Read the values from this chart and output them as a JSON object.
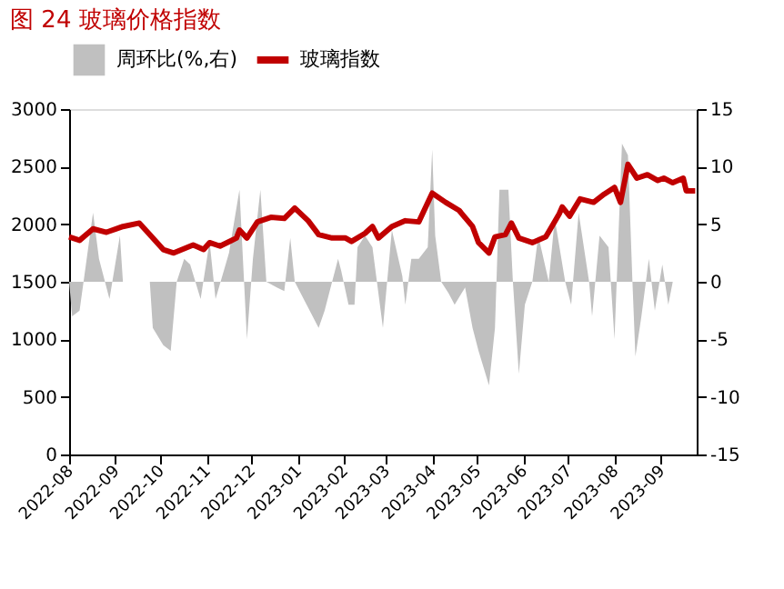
{
  "chart_data": {
    "type": "line",
    "title": "图 24 玻璃价格指数",
    "legend": "top",
    "grid": false,
    "marker": "none",
    "line_style": "solid",
    "xlim": [
      "2022-08-01",
      "2023-09-25"
    ],
    "xticks": [
      {
        "value": "2022-08-01",
        "label": "2022-08"
      },
      {
        "value": "2022-09-01",
        "label": "2022-09"
      },
      {
        "value": "2022-10-01",
        "label": "2022-10"
      },
      {
        "value": "2022-11-01",
        "label": "2022-11"
      },
      {
        "value": "2022-12-01",
        "label": "2022-12"
      },
      {
        "value": "2023-01-01",
        "label": "2023-01"
      },
      {
        "value": "2023-02-01",
        "label": "2023-02"
      },
      {
        "value": "2023-03-01",
        "label": "2023-03"
      },
      {
        "value": "2023-04-01",
        "label": "2023-04"
      },
      {
        "value": "2023-05-01",
        "label": "2023-05"
      },
      {
        "value": "2023-06-01",
        "label": "2023-06"
      },
      {
        "value": "2023-07-01",
        "label": "2023-07"
      },
      {
        "value": "2023-08-01",
        "label": "2023-08"
      },
      {
        "value": "2023-09-01",
        "label": "2023-09"
      }
    ],
    "ylim": [
      0,
      3000
    ],
    "yticks": [
      0,
      500,
      1000,
      1500,
      2000,
      2500,
      3000
    ],
    "y2lim": [
      -15,
      15
    ],
    "y2ticks": [
      -15,
      -10,
      -5,
      0,
      5,
      10,
      15
    ],
    "series": [
      {
        "name": "周环比(%,右)",
        "type": "area",
        "axis": "y2",
        "color": "#c0c0c0",
        "x": [
          "2022-08-01",
          "2022-08-03",
          "2022-08-08",
          "2022-08-17",
          "2022-08-21",
          "2022-08-28",
          "2022-09-04",
          "2022-09-06",
          "2022-09-24",
          "2022-09-26",
          "2022-10-03",
          "2022-10-08",
          "2022-10-12",
          "2022-10-17",
          "2022-10-21",
          "2022-10-28",
          "2022-11-03",
          "2022-11-07",
          "2022-11-16",
          "2022-11-23",
          "2022-11-28",
          "2022-12-02",
          "2022-12-07",
          "2022-12-11",
          "2022-12-18",
          "2022-12-23",
          "2022-12-27",
          "2022-12-30",
          "2023-01-15",
          "2023-01-19",
          "2023-01-28",
          "2023-01-30",
          "2023-02-04",
          "2023-02-08",
          "2023-02-10",
          "2023-02-15",
          "2023-02-20",
          "2023-02-27",
          "2023-03-05",
          "2023-03-12",
          "2023-03-14",
          "2023-03-18",
          "2023-03-23",
          "2023-03-29",
          "2023-04-01",
          "2023-04-03",
          "2023-04-07",
          "2023-04-12",
          "2023-04-16",
          "2023-04-23",
          "2023-04-28",
          "2023-05-02",
          "2023-05-09",
          "2023-05-13",
          "2023-05-16",
          "2023-05-22",
          "2023-05-25",
          "2023-05-29",
          "2023-06-02",
          "2023-06-07",
          "2023-06-11",
          "2023-06-18",
          "2023-06-22",
          "2023-06-29",
          "2023-07-03",
          "2023-07-08",
          "2023-07-15",
          "2023-07-17",
          "2023-07-22",
          "2023-07-28",
          "2023-08-01",
          "2023-08-06",
          "2023-08-10",
          "2023-08-13",
          "2023-08-15",
          "2023-08-19",
          "2023-08-24",
          "2023-08-28",
          "2023-09-02",
          "2023-09-06",
          "2023-09-09"
        ],
        "values": [
          0,
          -3,
          -2.5,
          6,
          2,
          -1.5,
          4,
          0,
          0,
          -4,
          -5.5,
          -6,
          0,
          2,
          1.5,
          -1.5,
          3.5,
          -1.5,
          2.5,
          8,
          -5,
          2,
          8,
          0,
          -0.5,
          -0.8,
          3.8,
          0,
          -4,
          -2.5,
          2,
          1,
          -2,
          -2,
          3,
          4,
          3,
          -4,
          4.5,
          0.5,
          -2,
          2,
          2,
          3,
          11.5,
          4,
          0,
          -1,
          -2,
          -0.5,
          -4,
          -6,
          -9,
          -4,
          8,
          8,
          0,
          -8,
          -2,
          0,
          4,
          0,
          5.5,
          0,
          -2,
          6,
          0,
          -3,
          4,
          3,
          -5,
          12,
          11,
          0,
          -6.5,
          -3,
          2,
          -2.5,
          1.5,
          -2,
          0
        ]
      },
      {
        "name": "玻璃指数",
        "color": "#c00000",
        "x": [
          "2022-08-01",
          "2022-08-08",
          "2022-08-17",
          "2022-08-26",
          "2022-09-06",
          "2022-09-17",
          "2022-10-03",
          "2022-10-10",
          "2022-10-23",
          "2022-10-30",
          "2022-11-03",
          "2022-11-10",
          "2022-11-21",
          "2022-11-23",
          "2022-11-28",
          "2022-12-05",
          "2022-12-14",
          "2022-12-23",
          "2022-12-30",
          "2023-01-08",
          "2023-01-15",
          "2023-01-24",
          "2023-02-02",
          "2023-02-06",
          "2023-02-15",
          "2023-02-20",
          "2023-02-24",
          "2023-03-05",
          "2023-03-14",
          "2023-03-23",
          "2023-04-01",
          "2023-04-10",
          "2023-04-19",
          "2023-04-28",
          "2023-05-02",
          "2023-05-09",
          "2023-05-13",
          "2023-05-20",
          "2023-05-24",
          "2023-05-29",
          "2023-06-07",
          "2023-06-16",
          "2023-06-25",
          "2023-06-27",
          "2023-07-02",
          "2023-07-09",
          "2023-07-18",
          "2023-07-25",
          "2023-08-01",
          "2023-08-05",
          "2023-08-10",
          "2023-08-16",
          "2023-08-23",
          "2023-08-30",
          "2023-09-03",
          "2023-09-09",
          "2023-09-16",
          "2023-09-18",
          "2023-09-24"
        ],
        "values": [
          1890,
          1860,
          1960,
          1930,
          1980,
          2010,
          1780,
          1750,
          1820,
          1780,
          1840,
          1810,
          1880,
          1950,
          1880,
          2020,
          2060,
          2050,
          2140,
          2030,
          1910,
          1880,
          1880,
          1850,
          1920,
          1980,
          1880,
          1980,
          2030,
          2020,
          2270,
          2190,
          2120,
          1980,
          1840,
          1750,
          1890,
          1910,
          2010,
          1880,
          1840,
          1890,
          2090,
          2150,
          2070,
          2220,
          2190,
          2260,
          2320,
          2190,
          2520,
          2400,
          2430,
          2380,
          2400,
          2360,
          2400,
          2290,
          2290
        ]
      }
    ]
  }
}
